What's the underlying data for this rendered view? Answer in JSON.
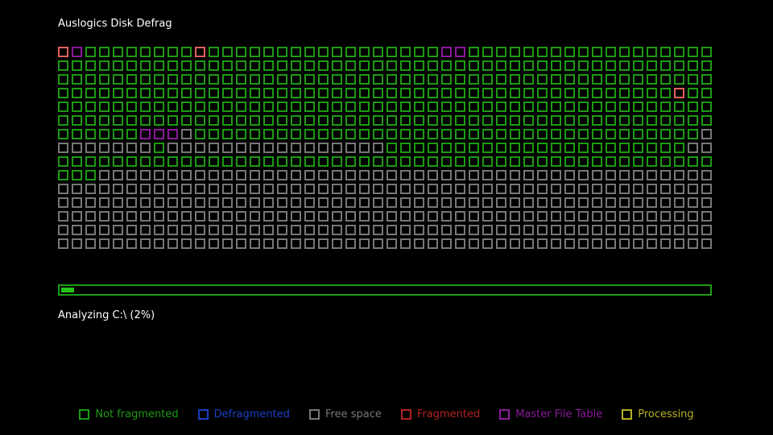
{
  "app": {
    "title": "Auslogics Disk Defrag"
  },
  "status": {
    "text": "Analyzing C:\\ (2%)",
    "progress_percent": 2
  },
  "colors": {
    "not_fragmented": "#1e9a14",
    "defragmented": "#1a3fc4",
    "free_space": "#777777",
    "fragmented": "#b42222",
    "fragmented_fill": "#e06060",
    "master_file_table": "#8a1a9a",
    "processing": "#b5b026",
    "progress_fill": "#27c31a"
  },
  "cluster_map": {
    "columns": 48,
    "rows": 15,
    "legend_key": {
      "N": "Not fragmented",
      "F": "Free space",
      "R": "Fragmented",
      "M": "Master File Table"
    },
    "grid": [
      "RMNNNNNNNNRNNNNNNNNNNNNNNNNNMMNNNNNNNNNNNNNNNNNN",
      "NNNNNNNNNNNNNNNNNNNNNNNNNNNNNNNNNNNNNNNNNNNNNNNN",
      "NNNNNNNNNNNNNNNNNNNNNNNNNNNNNNNNNNNNNNNNNNNNNNNN",
      "NNNNNNNNNNNNNNNNNNNNNNNNNNNNNNNNNNNNNNNNNNNNNRNN",
      "NNNNNNNNNNNNNNNNNNNNNNNNNNNNNNNNNNNNNNNNNNNNNNNN",
      "NNNNNNNNNNNNNNNNNNNNNNNNNNNNNNNNNNNNNNNNNNNNNNNN",
      "NNNNNNMMMFNNNNNNNNNNNNNNNNNNNNNNNNNNNNNNNNNNNNNF",
      "FFFFFFFNFFFFFFFFFFFFFFFFNNNNNNNNNNNNNNNNNNNNNNFF",
      "NNNNNNNNNNNNNNNNNNNNNNNNNNNNNNNNNNNNNNNNNNNNNNNN",
      "NNNFFFFFFFFFFFFFFFFFFFFFFFFFFFFFFFFFFFFFFFFFFFFF",
      "FFFFFFFFFFFFFFFFFFFFFFFFFFFFFFFFFFFFFFFFFFFFFFFF",
      "FFFFFFFFFFFFFFFFFFFFFFFFFFFFFFFFFFFFFFFFFFFFFFFF",
      "FFFFFFFFFFFFFFFFFFFFFFFFFFFFFFFFFFFFFFFFFFFFFFFF",
      "FFFFFFFFFFFFFFFFFFFFFFFFFFFFFFFFFFFFFFFFFFFFFFFF",
      "FFFFFFFFFFFFFFFFFFFFFFFFFFFFFFFFFFFFFFFFFFFFFFFF"
    ]
  },
  "legend": [
    {
      "label": "Not fragmented",
      "color": "#1e9a14"
    },
    {
      "label": "Defragmented",
      "color": "#1a3fc4"
    },
    {
      "label": "Free space",
      "color": "#777777"
    },
    {
      "label": "Fragmented",
      "color": "#b42222"
    },
    {
      "label": "Master File Table",
      "color": "#8a1a9a"
    },
    {
      "label": "Processing",
      "color": "#b5b026"
    }
  ]
}
